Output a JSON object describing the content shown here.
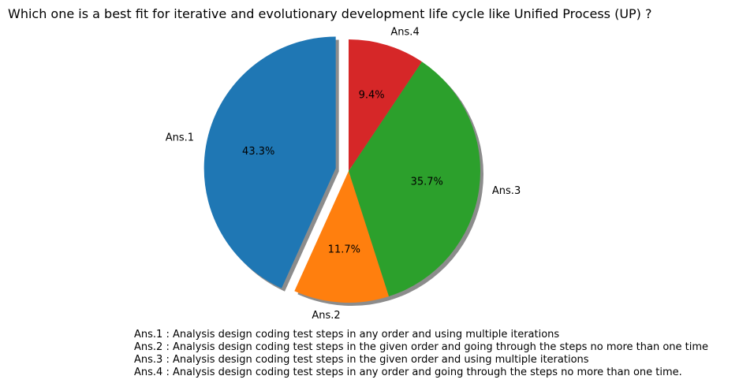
{
  "chart_data": {
    "type": "pie",
    "title": "Which one is a best fit for iterative and evolutionary development life cycle like Unified Process (UP) ?",
    "categories": [
      "Ans.1",
      "Ans.2",
      "Ans.3",
      "Ans.4"
    ],
    "values": [
      43.3,
      11.7,
      35.7,
      9.4
    ],
    "value_labels": [
      "43.3%",
      "11.7%",
      "35.7%",
      "9.4%"
    ],
    "colors": [
      "#1f77b4",
      "#ff7f0e",
      "#2ca02c",
      "#d62728"
    ],
    "explode": [
      0.1,
      0,
      0,
      0
    ],
    "start_angle": 90,
    "direction": "counterclockwise",
    "shadow": true,
    "notes": [
      "Ans.1 : Analysis design coding test steps in any order and using multiple iterations",
      "Ans.2 : Analysis design coding test steps in the given order and going through the steps no more than one time",
      "Ans.3 : Analysis design coding test steps in the given order and using multiple iterations",
      "Ans.4 : Analysis design coding test steps in any order and going through the steps no more than one time."
    ]
  }
}
